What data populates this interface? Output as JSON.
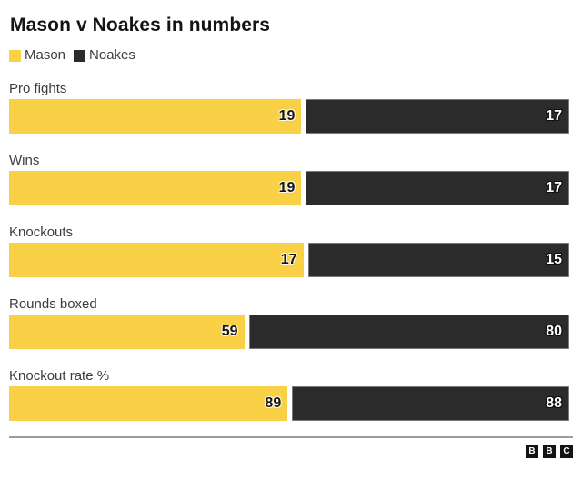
{
  "title": "Mason v Noakes in numbers",
  "legend": {
    "items": [
      {
        "label": "Mason",
        "color": "#F8D146"
      },
      {
        "label": "Noakes",
        "color": "#2B2B2B"
      }
    ]
  },
  "footer": {
    "logo_letters": [
      "B",
      "B",
      "C"
    ]
  },
  "colors": {
    "mason_bar": "#F8D146",
    "noakes_bar": "#2B2B2B",
    "noakes_border": "#7B7B7B",
    "title_text": "#141414",
    "label_text": "#3D3D3D",
    "legend_text": "#404040",
    "divider": "#9C9C9C",
    "background": "#FFFFFF"
  },
  "chart_data": {
    "type": "bar",
    "orientation": "horizontal",
    "title": "Mason v Noakes in numbers",
    "categories": [
      "Pro fights",
      "Wins",
      "Knockouts",
      "Rounds boxed",
      "Knockout rate %"
    ],
    "series": [
      {
        "name": "Mason",
        "color": "#F8D146",
        "values": [
          19,
          19,
          17,
          59,
          89
        ]
      },
      {
        "name": "Noakes",
        "color": "#2B2B2B",
        "values": [
          17,
          17,
          15,
          80,
          88
        ]
      }
    ],
    "value_labels": true,
    "legend_position": "top-left",
    "bar_widths_note": "each row pair spans full width, split proportionally to the two values"
  }
}
